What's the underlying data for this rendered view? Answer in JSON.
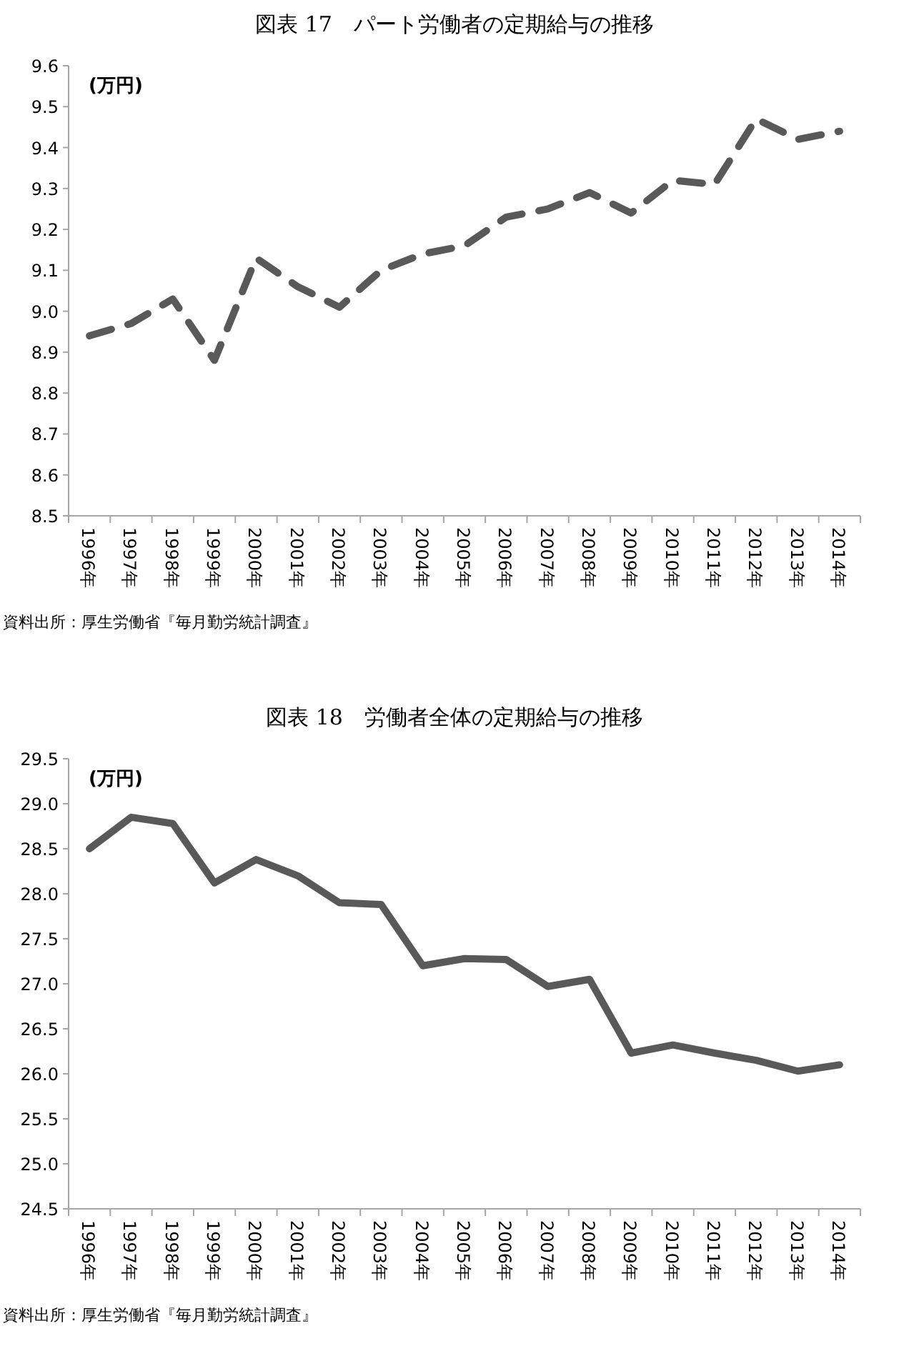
{
  "chart_data": [
    {
      "type": "line",
      "title": "図表 17　パート労働者の定期給与の推移",
      "ylabel": "(万円)",
      "categories": [
        "1996年",
        "1997年",
        "1998年",
        "1999年",
        "2000年",
        "2001年",
        "2002年",
        "2003年",
        "2004年",
        "2005年",
        "2006年",
        "2007年",
        "2008年",
        "2009年",
        "2010年",
        "2011年",
        "2012年",
        "2013年",
        "2014年"
      ],
      "values": [
        8.94,
        8.97,
        9.03,
        8.88,
        9.13,
        9.06,
        9.01,
        9.1,
        9.14,
        9.16,
        9.23,
        9.25,
        9.29,
        9.24,
        9.32,
        9.31,
        9.47,
        9.42,
        9.44
      ],
      "color": "#595959",
      "line_style": "dashed",
      "ylim": [
        8.5,
        9.6
      ],
      "yticks": [
        {
          "value": 8.5,
          "label": "8.5"
        },
        {
          "value": 8.6,
          "label": "8.6"
        },
        {
          "value": 8.7,
          "label": "8.7"
        },
        {
          "value": 8.8,
          "label": "8.8"
        },
        {
          "value": 8.9,
          "label": "8.9"
        },
        {
          "value": 9.0,
          "label": "9.0"
        },
        {
          "value": 9.1,
          "label": "9.1"
        },
        {
          "value": 9.2,
          "label": "9.2"
        },
        {
          "value": 9.3,
          "label": "9.3"
        },
        {
          "value": 9.4,
          "label": "9.4"
        },
        {
          "value": 9.5,
          "label": "9.5"
        },
        {
          "value": 9.6,
          "label": "9.6"
        }
      ],
      "annotations": [
        "資料出所：厚生労働省『毎月勤労統計調査』"
      ]
    },
    {
      "type": "line",
      "title": "図表 18　労働者全体の定期給与の推移",
      "ylabel": "(万円)",
      "categories": [
        "1996年",
        "1997年",
        "1998年",
        "1999年",
        "2000年",
        "2001年",
        "2002年",
        "2003年",
        "2004年",
        "2005年",
        "2006年",
        "2007年",
        "2008年",
        "2009年",
        "2010年",
        "2011年",
        "2012年",
        "2013年",
        "2014年"
      ],
      "values": [
        28.5,
        28.85,
        28.78,
        28.12,
        28.38,
        28.2,
        27.9,
        27.88,
        27.2,
        27.28,
        27.27,
        26.97,
        27.05,
        26.23,
        26.32,
        26.23,
        26.15,
        26.03,
        26.1
      ],
      "color": "#595959",
      "line_style": "solid",
      "ylim": [
        24.5,
        29.5
      ],
      "yticks": [
        {
          "value": 24.5,
          "label": "24.5"
        },
        {
          "value": 25,
          "label": "25.0"
        },
        {
          "value": 25.5,
          "label": "25.5"
        },
        {
          "value": 26,
          "label": "26.0"
        },
        {
          "value": 26.5,
          "label": "26.5"
        },
        {
          "value": 27,
          "label": "27.0"
        },
        {
          "value": 27.5,
          "label": "27.5"
        },
        {
          "value": 28,
          "label": "28.0"
        },
        {
          "value": 28.5,
          "label": "28.5"
        },
        {
          "value": 29,
          "label": "29.0"
        },
        {
          "value": 29.5,
          "label": "29.5"
        }
      ],
      "annotations": [
        "資料出所：厚生労働省『毎月勤労統計調査』"
      ]
    }
  ]
}
